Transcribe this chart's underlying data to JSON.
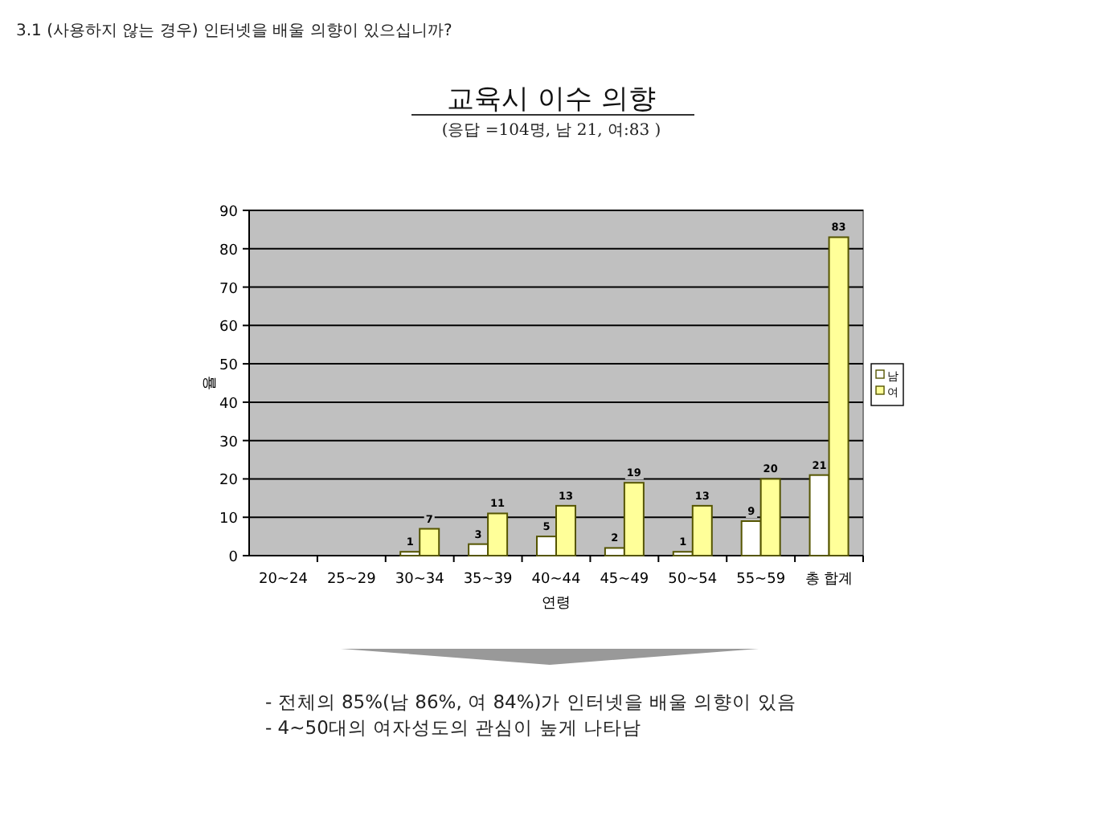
{
  "chart_data": {
    "type": "bar",
    "title": "교육시 이수 의향",
    "subtitle": "(응답 =104명, 남 21,  여:83 )",
    "xlabel": "연령",
    "ylabel": "율",
    "categories": [
      "20~24",
      "25~29",
      "30~34",
      "35~39",
      "40~44",
      "45~49",
      "50~54",
      "55~59",
      "총 합계"
    ],
    "series": [
      {
        "name": "남",
        "color": "#ffffff",
        "values": [
          null,
          null,
          1,
          3,
          5,
          2,
          1,
          9,
          21
        ],
        "value_labels": [
          null,
          null,
          "1",
          "3",
          "5",
          "2",
          "1",
          "9",
          "21"
        ]
      },
      {
        "name": "여",
        "color": "#ffff99",
        "values": [
          null,
          null,
          7,
          11,
          13,
          19,
          13,
          20,
          83
        ],
        "value_labels": [
          null,
          null,
          "7",
          "11",
          "13",
          "19",
          "13",
          "20",
          "83"
        ]
      }
    ],
    "ylim": [
      0,
      90
    ],
    "yticks": [
      0,
      10,
      20,
      30,
      40,
      50,
      60,
      70,
      80,
      90
    ],
    "grid": "y",
    "legend": "right",
    "annotations": [
      "3.1 (사용하지 않는 경우) 인터넷을 배울 의향이 있으십니까?",
      "- 전체의 85%(남 86%,  여 84%)가  인터넷을 배울 의향이 있음",
      "- 4~50대의 여자성도의 관심이 높게 나타남"
    ]
  }
}
